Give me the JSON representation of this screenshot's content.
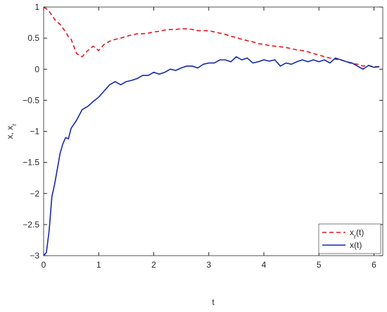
{
  "chart_data": {
    "type": "line",
    "xlabel": "t",
    "ylabel": "x,  x_r",
    "x": [
      0,
      0.05,
      0.1,
      0.15,
      0.2,
      0.25,
      0.3,
      0.35,
      0.4,
      0.45,
      0.5,
      0.6,
      0.7,
      0.8,
      0.9,
      1.0,
      1.1,
      1.2,
      1.3,
      1.4,
      1.5,
      1.6,
      1.7,
      1.8,
      1.9,
      2.0,
      2.1,
      2.2,
      2.3,
      2.4,
      2.5,
      2.6,
      2.7,
      2.8,
      2.9,
      3.0,
      3.1,
      3.2,
      3.3,
      3.4,
      3.5,
      3.6,
      3.7,
      3.8,
      3.9,
      4.0,
      4.1,
      4.2,
      4.3,
      4.4,
      4.5,
      4.6,
      4.7,
      4.8,
      4.9,
      5.0,
      5.1,
      5.2,
      5.3,
      5.4,
      5.5,
      5.6,
      5.7,
      5.8,
      5.9,
      6.0,
      6.1
    ],
    "series": [
      {
        "name": "x_r(t)",
        "color": "#e8141c",
        "dash": true,
        "values": [
          1,
          0.97,
          0.93,
          0.87,
          0.8,
          0.76,
          0.72,
          0.66,
          0.6,
          0.52,
          0.48,
          0.25,
          0.2,
          0.3,
          0.37,
          0.3,
          0.4,
          0.45,
          0.48,
          0.5,
          0.53,
          0.55,
          0.57,
          0.57,
          0.58,
          0.6,
          0.61,
          0.63,
          0.64,
          0.64,
          0.65,
          0.65,
          0.64,
          0.62,
          0.62,
          0.62,
          0.6,
          0.58,
          0.56,
          0.53,
          0.51,
          0.48,
          0.46,
          0.44,
          0.41,
          0.4,
          0.38,
          0.37,
          0.36,
          0.35,
          0.33,
          0.31,
          0.3,
          0.28,
          0.25,
          0.23,
          0.2,
          0.18,
          0.16,
          0.15,
          0.12,
          0.09,
          0.08,
          0.05,
          0.06,
          0.04,
          0.04
        ]
      },
      {
        "name": "x(t)",
        "color": "#1428b4",
        "dash": false,
        "values": [
          -3,
          -2.95,
          -2.6,
          -2.05,
          -1.85,
          -1.6,
          -1.35,
          -1.2,
          -1.1,
          -1.12,
          -0.95,
          -0.82,
          -0.65,
          -0.6,
          -0.52,
          -0.45,
          -0.35,
          -0.25,
          -0.2,
          -0.25,
          -0.2,
          -0.18,
          -0.15,
          -0.1,
          -0.1,
          -0.05,
          -0.08,
          -0.05,
          0,
          -0.02,
          0.02,
          0.05,
          0.05,
          0.02,
          0.08,
          0.1,
          0.1,
          0.15,
          0.15,
          0.12,
          0.2,
          0.15,
          0.18,
          0.1,
          0.12,
          0.15,
          0.13,
          0.15,
          0.05,
          0.1,
          0.08,
          0.12,
          0.15,
          0.12,
          0.15,
          0.12,
          0.15,
          0.1,
          0.18,
          0.15,
          0.12,
          0.1,
          0.05,
          0,
          0.06,
          0.03,
          0.04
        ]
      }
    ],
    "xlim": [
      0,
      6.16
    ],
    "xticks": [
      0,
      1,
      2,
      3,
      4,
      5,
      6
    ],
    "ylim": [
      -3,
      1
    ],
    "yticks": [
      {
        "value": -3,
        "label": "−3"
      },
      {
        "value": -2.5,
        "label": "−2.5"
      },
      {
        "value": -2,
        "label": "−2"
      },
      {
        "value": -1.5,
        "label": "−1.5"
      },
      {
        "value": -1,
        "label": "−1"
      },
      {
        "value": -0.5,
        "label": "−0.5"
      },
      0,
      0.5,
      1
    ],
    "legend": "bottom-right"
  }
}
